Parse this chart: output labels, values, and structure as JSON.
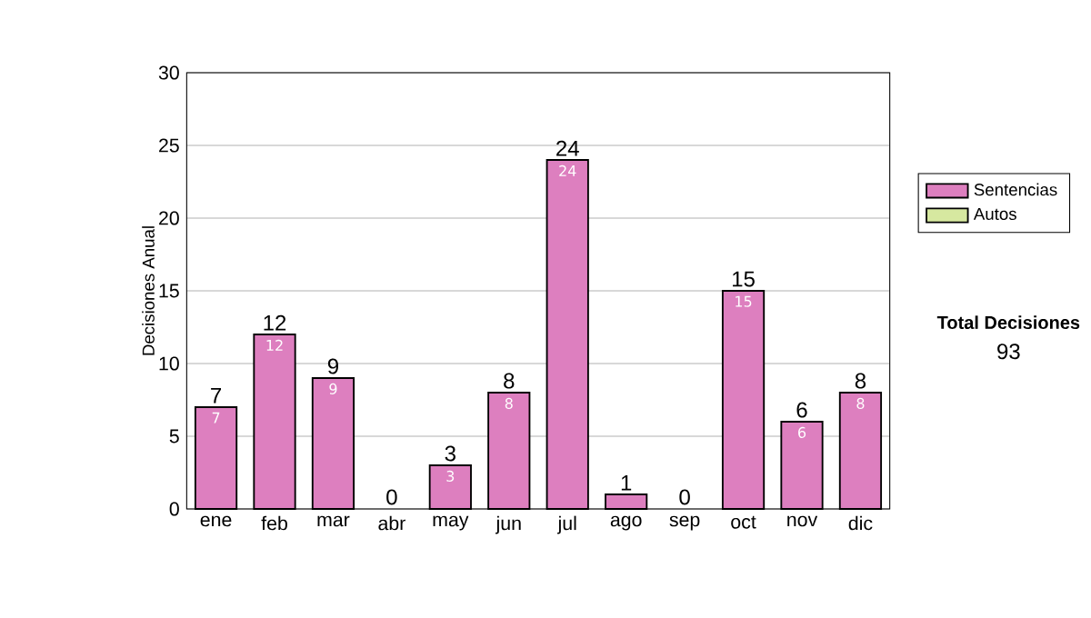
{
  "chart_data": {
    "type": "bar",
    "stacked": true,
    "ylabel": "Decisiones Anual",
    "categories": [
      "ene",
      "feb",
      "mar",
      "abr",
      "may",
      "jun",
      "jul",
      "ago",
      "sep",
      "oct",
      "nov",
      "dic"
    ],
    "series": [
      {
        "name": "Sentencias",
        "color": "#dd7fbf",
        "values": [
          7,
          12,
          9,
          0,
          3,
          8,
          24,
          1,
          0,
          15,
          6,
          8
        ],
        "value_labels": [
          "7",
          "12",
          "9",
          null,
          "3",
          "8",
          "24",
          null,
          null,
          "15",
          "6",
          "8"
        ]
      },
      {
        "name": "Autos",
        "color": "#d6e8a0",
        "values": [
          0,
          0,
          0,
          0,
          0,
          0,
          0,
          0,
          0,
          0,
          0,
          0
        ]
      }
    ],
    "totals": [
      "7",
      "12",
      "9",
      "0",
      "3",
      "8",
      "24",
      "1",
      "0",
      "15",
      "6",
      "8"
    ],
    "ylim": [
      0,
      30
    ],
    "yticks": [
      0,
      5,
      10,
      15,
      20,
      25,
      30
    ],
    "grid": "y",
    "legend": "right",
    "annotations": [
      "Total Decisiones",
      "93"
    ]
  }
}
